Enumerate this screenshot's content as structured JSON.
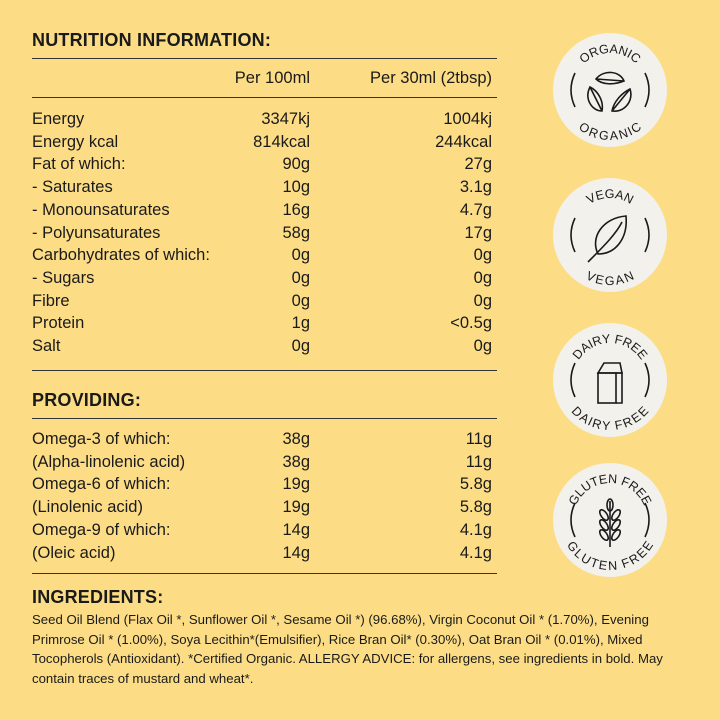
{
  "nutrition": {
    "title": "NUTRITION INFORMATION:",
    "columns": [
      "Per 100ml",
      "Per 30ml (2tbsp)"
    ],
    "rows": [
      [
        "Energy",
        "3347kj",
        "1004kj"
      ],
      [
        "Energy kcal",
        "814kcal",
        "244kcal"
      ],
      [
        "Fat of which:",
        "90g",
        "27g"
      ],
      [
        "- Saturates",
        "10g",
        "3.1g"
      ],
      [
        "- Monounsaturates",
        "16g",
        "4.7g"
      ],
      [
        "- Polyunsaturates",
        "58g",
        "17g"
      ],
      [
        "Carbohydrates of which:",
        "0g",
        "0g"
      ],
      [
        "- Sugars",
        "0g",
        "0g"
      ],
      [
        "Fibre",
        "0g",
        "0g"
      ],
      [
        "Protein",
        "1g",
        "<0.5g"
      ],
      [
        "Salt",
        "0g",
        "0g"
      ]
    ]
  },
  "providing": {
    "title": "PROVIDING:",
    "rows": [
      [
        "Omega-3 of which:",
        "38g",
        "11g"
      ],
      [
        "(Alpha-linolenic acid)",
        "38g",
        "11g"
      ],
      [
        "Omega-6 of which:",
        "19g",
        "5.8g"
      ],
      [
        "(Linolenic acid)",
        "19g",
        "5.8g"
      ],
      [
        "Omega-9 of which:",
        "14g",
        "4.1g"
      ],
      [
        "(Oleic acid)",
        "14g",
        "4.1g"
      ]
    ]
  },
  "ingredients": {
    "title": "INGREDIENTS:",
    "text": "Seed Oil Blend (Flax Oil *, Sunflower Oil *, Sesame Oil *) (96.68%), Virgin Coconut Oil * (1.70%), Evening Primrose Oil * (1.00%), Soya Lecithin*(Emulsifier), Rice Bran Oil* (0.30%), Oat Bran Oil * (0.01%), Mixed Tocopherols (Antioxidant). *Certified Organic. ALLERGY ADVICE: for allergens, see ingredients in bold. May contain traces of mustard and wheat*."
  },
  "badges": [
    {
      "label": "ORGANIC",
      "icon": "three-leaves-icon"
    },
    {
      "label": "VEGAN",
      "icon": "leaf-icon"
    },
    {
      "label": "DAIRY FREE",
      "icon": "milk-carton-icon"
    },
    {
      "label": "GLUTEN FREE",
      "icon": "wheat-icon"
    }
  ],
  "colors": {
    "background": "#fcdd86",
    "badge": "#f3f1ec",
    "text": "#1a1a1a"
  }
}
